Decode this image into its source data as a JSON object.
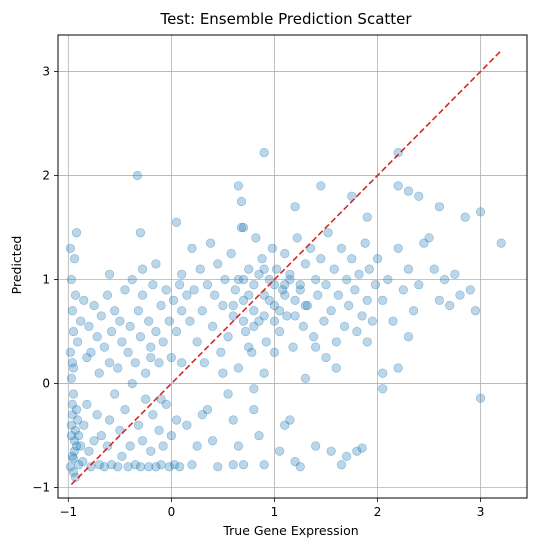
{
  "chart_data": {
    "type": "scatter",
    "title": "Test: Ensemble Prediction Scatter",
    "xlabel": "True Gene Expression",
    "ylabel": "Predicted",
    "xlim": [
      -1.1,
      3.45
    ],
    "ylim": [
      -1.1,
      3.35
    ],
    "xticks": [
      -1,
      0,
      1,
      2,
      3
    ],
    "yticks": [
      -1,
      0,
      1,
      2,
      3
    ],
    "grid": true,
    "point_color": "#1f77b4",
    "point_alpha": 0.3,
    "reference_line": {
      "x": [
        -0.97,
        3.2
      ],
      "y": [
        -0.97,
        3.2
      ],
      "color": "#d62728",
      "style": "dashed"
    },
    "series": [
      {
        "points": [
          [
            -0.95,
            -0.72
          ],
          [
            -0.97,
            -0.5
          ],
          [
            -0.96,
            -0.3
          ],
          [
            -0.98,
            -0.8
          ],
          [
            -0.94,
            -0.65
          ],
          [
            -0.93,
            -0.45
          ],
          [
            -0.95,
            -0.1
          ],
          [
            -0.97,
            0.05
          ],
          [
            -0.96,
            -0.2
          ],
          [
            -0.92,
            -0.6
          ],
          [
            -0.9,
            -0.78
          ],
          [
            -0.95,
            -0.85
          ],
          [
            -0.93,
            -0.9
          ],
          [
            -0.97,
            -0.4
          ],
          [
            -0.91,
            -0.35
          ],
          [
            -0.94,
            -0.55
          ],
          [
            -0.96,
            -0.7
          ],
          [
            -0.92,
            -0.25
          ],
          [
            -0.9,
            -0.5
          ],
          [
            -0.95,
            0.15
          ],
          [
            -0.98,
            0.3
          ],
          [
            -0.96,
            0.7
          ],
          [
            -0.97,
            1.0
          ],
          [
            -0.94,
            1.2
          ],
          [
            -0.98,
            1.3
          ],
          [
            -0.92,
            1.45
          ],
          [
            -0.93,
            0.85
          ],
          [
            -0.95,
            0.5
          ],
          [
            -0.91,
            0.4
          ],
          [
            -0.96,
            0.2
          ],
          [
            -0.88,
            -0.6
          ],
          [
            -0.86,
            -0.75
          ],
          [
            -0.85,
            -0.4
          ],
          [
            -0.82,
            -0.2
          ],
          [
            -0.8,
            -0.65
          ],
          [
            -0.78,
            -0.8
          ],
          [
            -0.75,
            -0.55
          ],
          [
            -0.72,
            -0.3
          ],
          [
            -0.7,
            -0.78
          ],
          [
            -0.68,
            -0.5
          ],
          [
            -0.65,
            -0.8
          ],
          [
            -0.62,
            -0.6
          ],
          [
            -0.6,
            -0.35
          ],
          [
            -0.58,
            -0.78
          ],
          [
            -0.55,
            -0.1
          ],
          [
            -0.52,
            -0.8
          ],
          [
            -0.5,
            -0.45
          ],
          [
            -0.48,
            -0.7
          ],
          [
            -0.45,
            -0.25
          ],
          [
            -0.42,
            -0.8
          ],
          [
            -0.4,
            -0.6
          ],
          [
            -0.38,
            0.0
          ],
          [
            -0.35,
            -0.78
          ],
          [
            -0.32,
            -0.4
          ],
          [
            -0.3,
            -0.8
          ],
          [
            -0.28,
            -0.55
          ],
          [
            -0.25,
            -0.15
          ],
          [
            -0.22,
            -0.8
          ],
          [
            -0.2,
            -0.65
          ],
          [
            -0.18,
            -0.3
          ],
          [
            -0.15,
            -0.8
          ],
          [
            -0.12,
            -0.45
          ],
          [
            -0.1,
            -0.78
          ],
          [
            -0.08,
            -0.6
          ],
          [
            -0.05,
            -0.2
          ],
          [
            -0.02,
            -0.8
          ],
          [
            0.0,
            -0.5
          ],
          [
            0.03,
            -0.78
          ],
          [
            0.05,
            -0.35
          ],
          [
            0.08,
            -0.8
          ],
          [
            -0.88,
            0.6
          ],
          [
            -0.85,
            0.8
          ],
          [
            -0.82,
            0.25
          ],
          [
            -0.8,
            0.55
          ],
          [
            -0.78,
            0.3
          ],
          [
            -0.75,
            0.75
          ],
          [
            -0.72,
            0.45
          ],
          [
            -0.7,
            0.1
          ],
          [
            -0.68,
            0.65
          ],
          [
            -0.65,
            0.35
          ],
          [
            -0.62,
            0.85
          ],
          [
            -0.6,
            0.2
          ],
          [
            -0.58,
            0.5
          ],
          [
            -0.55,
            0.7
          ],
          [
            -0.52,
            0.15
          ],
          [
            -0.5,
            0.6
          ],
          [
            -0.48,
            0.4
          ],
          [
            -0.45,
            0.9
          ],
          [
            -0.42,
            0.3
          ],
          [
            -0.4,
            0.55
          ],
          [
            -0.38,
            1.0
          ],
          [
            -0.35,
            0.2
          ],
          [
            -0.32,
            0.7
          ],
          [
            -0.3,
            0.45
          ],
          [
            -0.28,
            0.85
          ],
          [
            -0.25,
            0.1
          ],
          [
            -0.22,
            0.6
          ],
          [
            -0.2,
            0.35
          ],
          [
            -0.18,
            0.95
          ],
          [
            -0.15,
            0.5
          ],
          [
            -0.12,
            0.2
          ],
          [
            -0.1,
            0.75
          ],
          [
            -0.08,
            0.4
          ],
          [
            -0.05,
            0.9
          ],
          [
            -0.02,
            0.6
          ],
          [
            0.0,
            0.25
          ],
          [
            0.02,
            0.8
          ],
          [
            0.05,
            0.5
          ],
          [
            0.08,
            0.95
          ],
          [
            0.1,
            0.7
          ],
          [
            -0.33,
            2.0
          ],
          [
            -0.3,
            1.45
          ],
          [
            -0.28,
            1.1
          ],
          [
            -0.6,
            1.05
          ],
          [
            -0.15,
            1.15
          ],
          [
            0.1,
            1.05
          ],
          [
            0.15,
            0.85
          ],
          [
            0.18,
            0.6
          ],
          [
            0.2,
            1.3
          ],
          [
            0.22,
            0.9
          ],
          [
            0.25,
            0.4
          ],
          [
            0.28,
            1.1
          ],
          [
            0.3,
            0.7
          ],
          [
            0.32,
            0.2
          ],
          [
            0.35,
            0.95
          ],
          [
            0.38,
            1.35
          ],
          [
            0.4,
            0.55
          ],
          [
            0.42,
            0.85
          ],
          [
            0.45,
            1.15
          ],
          [
            0.48,
            0.3
          ],
          [
            0.5,
            0.75
          ],
          [
            0.52,
            1.0
          ],
          [
            0.55,
            0.45
          ],
          [
            0.58,
            1.25
          ],
          [
            0.6,
            0.65
          ],
          [
            0.62,
            0.9
          ],
          [
            0.65,
            0.15
          ],
          [
            0.68,
            1.5
          ],
          [
            0.7,
            0.8
          ],
          [
            0.72,
            0.5
          ],
          [
            0.75,
            1.1
          ],
          [
            0.78,
            0.3
          ],
          [
            0.8,
            0.95
          ],
          [
            0.82,
            1.4
          ],
          [
            0.85,
            0.6
          ],
          [
            0.88,
            1.2
          ],
          [
            0.9,
            0.85
          ],
          [
            0.92,
            0.4
          ],
          [
            0.95,
            1.0
          ],
          [
            0.98,
            1.3
          ],
          [
            1.0,
            0.75
          ],
          [
            1.02,
            1.1
          ],
          [
            1.05,
            0.5
          ],
          [
            1.08,
            0.9
          ],
          [
            1.1,
            1.25
          ],
          [
            1.12,
            0.65
          ],
          [
            1.15,
            1.05
          ],
          [
            1.18,
            0.35
          ],
          [
            1.2,
            0.8
          ],
          [
            1.22,
            1.4
          ],
          [
            1.25,
            0.95
          ],
          [
            1.28,
            0.55
          ],
          [
            1.3,
            1.15
          ],
          [
            1.32,
            0.75
          ],
          [
            1.35,
            1.3
          ],
          [
            1.38,
            0.45
          ],
          [
            1.4,
            1.0
          ],
          [
            1.42,
            0.85
          ],
          [
            1.45,
            1.2
          ],
          [
            1.48,
            0.6
          ],
          [
            1.5,
            0.95
          ],
          [
            1.52,
            1.45
          ],
          [
            1.55,
            0.7
          ],
          [
            1.58,
            1.1
          ],
          [
            1.6,
            0.4
          ],
          [
            1.62,
            0.85
          ],
          [
            1.65,
            1.3
          ],
          [
            1.68,
            0.55
          ],
          [
            1.7,
            1.0
          ],
          [
            1.72,
            0.75
          ],
          [
            1.75,
            1.2
          ],
          [
            1.78,
            0.9
          ],
          [
            1.8,
            0.5
          ],
          [
            1.82,
            1.05
          ],
          [
            1.85,
            0.65
          ],
          [
            1.88,
            1.35
          ],
          [
            1.9,
            0.8
          ],
          [
            1.92,
            1.1
          ],
          [
            1.95,
            0.6
          ],
          [
            1.98,
            0.95
          ],
          [
            0.6,
            0.75
          ],
          [
            0.65,
            1.0
          ],
          [
            0.7,
            0.6
          ],
          [
            0.75,
            0.85
          ],
          [
            0.8,
            0.7
          ],
          [
            0.85,
            1.05
          ],
          [
            0.9,
            0.65
          ],
          [
            0.95,
            0.8
          ],
          [
            1.0,
            0.95
          ],
          [
            1.05,
            0.7
          ],
          [
            1.1,
            0.85
          ],
          [
            1.15,
            1.0
          ],
          [
            1.2,
            0.65
          ],
          [
            1.25,
            0.9
          ],
          [
            1.3,
            0.75
          ],
          [
            0.7,
            1.0
          ],
          [
            0.8,
            0.55
          ],
          [
            0.9,
            1.1
          ],
          [
            1.0,
            0.6
          ],
          [
            1.1,
            0.95
          ],
          [
            2.0,
            1.2
          ],
          [
            2.05,
            0.8
          ],
          [
            2.1,
            1.0
          ],
          [
            2.15,
            0.6
          ],
          [
            2.2,
            1.3
          ],
          [
            2.25,
            0.9
          ],
          [
            2.3,
            1.1
          ],
          [
            2.35,
            0.7
          ],
          [
            2.4,
            0.95
          ],
          [
            2.45,
            1.35
          ],
          [
            2.5,
            1.4
          ],
          [
            2.55,
            1.1
          ],
          [
            2.6,
            0.8
          ],
          [
            2.65,
            1.0
          ],
          [
            2.7,
            0.75
          ],
          [
            2.75,
            1.05
          ],
          [
            2.8,
            0.85
          ],
          [
            2.85,
            1.6
          ],
          [
            2.9,
            0.9
          ],
          [
            2.95,
            0.7
          ],
          [
            2.2,
            1.9
          ],
          [
            2.3,
            1.85
          ],
          [
            2.4,
            1.8
          ],
          [
            2.6,
            1.7
          ],
          [
            3.0,
            1.65
          ],
          [
            3.2,
            1.35
          ],
          [
            2.2,
            2.22
          ],
          [
            0.9,
            2.22
          ],
          [
            1.45,
            1.9
          ],
          [
            1.75,
            1.8
          ],
          [
            0.65,
            1.9
          ],
          [
            0.68,
            1.75
          ],
          [
            0.7,
            1.5
          ],
          [
            0.05,
            1.55
          ],
          [
            1.2,
            1.7
          ],
          [
            1.9,
            1.6
          ],
          [
            2.05,
            0.1
          ],
          [
            2.2,
            0.15
          ],
          [
            2.3,
            0.45
          ],
          [
            1.5,
            0.25
          ],
          [
            1.6,
            0.15
          ],
          [
            1.4,
            0.35
          ],
          [
            1.3,
            0.05
          ],
          [
            1.0,
            0.3
          ],
          [
            0.9,
            0.1
          ],
          [
            0.8,
            -0.05
          ],
          [
            0.75,
            0.35
          ],
          [
            0.55,
            -0.1
          ],
          [
            0.5,
            0.1
          ],
          [
            0.35,
            -0.25
          ],
          [
            0.4,
            -0.55
          ],
          [
            0.3,
            -0.3
          ],
          [
            0.25,
            -0.6
          ],
          [
            0.2,
            -0.78
          ],
          [
            0.15,
            -0.4
          ],
          [
            0.45,
            -0.8
          ],
          [
            0.6,
            -0.35
          ],
          [
            0.6,
            -0.78
          ],
          [
            0.65,
            -0.6
          ],
          [
            0.7,
            -0.78
          ],
          [
            0.8,
            -0.25
          ],
          [
            0.85,
            -0.5
          ],
          [
            0.9,
            -0.78
          ],
          [
            1.05,
            -0.65
          ],
          [
            1.1,
            -0.4
          ],
          [
            1.15,
            -0.35
          ],
          [
            1.2,
            -0.75
          ],
          [
            1.25,
            -0.8
          ],
          [
            1.4,
            -0.6
          ],
          [
            1.55,
            -0.65
          ],
          [
            1.65,
            -0.78
          ],
          [
            1.7,
            -0.7
          ],
          [
            1.8,
            -0.65
          ],
          [
            1.85,
            -0.62
          ],
          [
            3.0,
            -0.14
          ],
          [
            2.05,
            -0.05
          ],
          [
            1.9,
            0.4
          ],
          [
            -0.1,
            -0.15
          ],
          [
            0.1,
            0.2
          ],
          [
            -0.2,
            0.25
          ]
        ]
      }
    ]
  }
}
